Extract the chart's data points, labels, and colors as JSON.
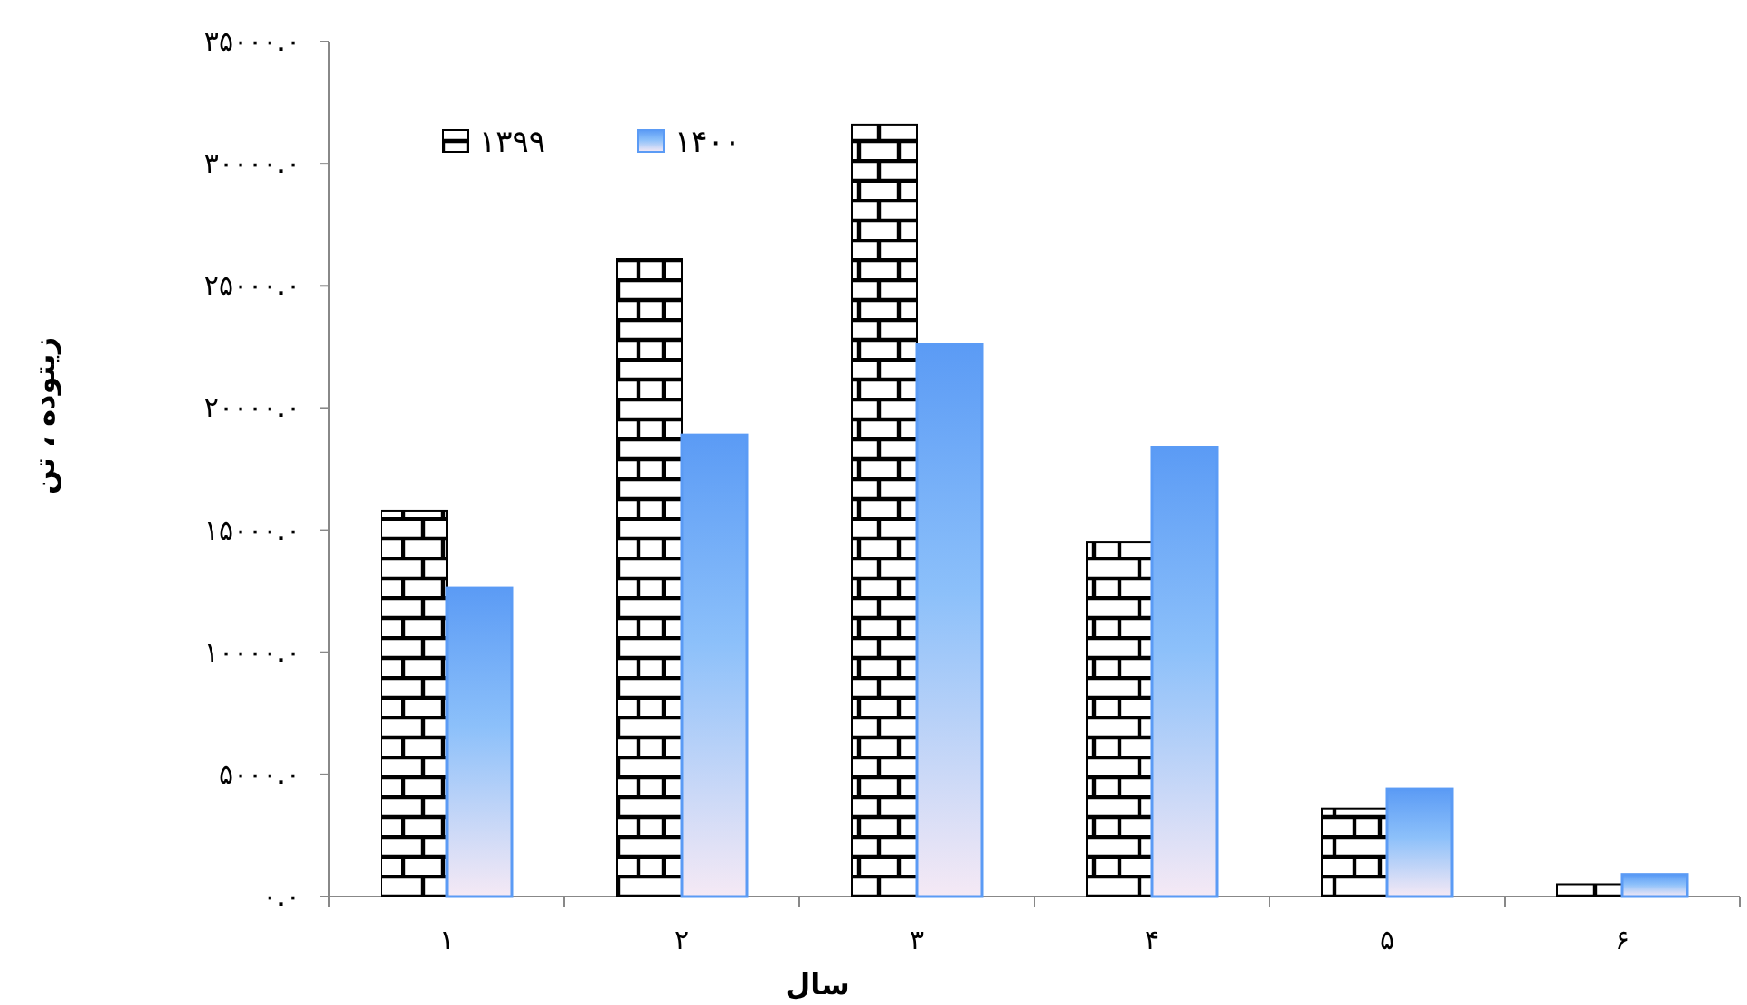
{
  "chart_data": {
    "type": "bar",
    "xlabel": "سال",
    "ylabel": "زیتوده ، تن",
    "categories": [
      "۱",
      "۲",
      "۳",
      "۴",
      "۵",
      "۶"
    ],
    "series": [
      {
        "name": "۱۳۹۹",
        "color": "#000000",
        "values": [
          15800,
          26100,
          31600,
          14500,
          3600,
          500
        ]
      },
      {
        "name": "۱۴۰۰",
        "color": "#5b9bf5",
        "values": [
          12650,
          18900,
          22600,
          18400,
          4400,
          900
        ]
      }
    ],
    "ylim": [
      0,
      35000
    ],
    "yticks": [
      {
        "value": 0,
        "label": "۰.۰"
      },
      {
        "value": 5000,
        "label": "۵۰۰۰.۰"
      },
      {
        "value": 10000,
        "label": "۱۰۰۰۰.۰"
      },
      {
        "value": 15000,
        "label": "۱۵۰۰۰.۰"
      },
      {
        "value": 20000,
        "label": "۲۰۰۰۰.۰"
      },
      {
        "value": 25000,
        "label": "۲۵۰۰۰.۰"
      },
      {
        "value": 30000,
        "label": "۳۰۰۰۰.۰"
      },
      {
        "value": 35000,
        "label": "۳۵۰۰۰.۰"
      }
    ],
    "grid": false,
    "legend": "top left"
  }
}
